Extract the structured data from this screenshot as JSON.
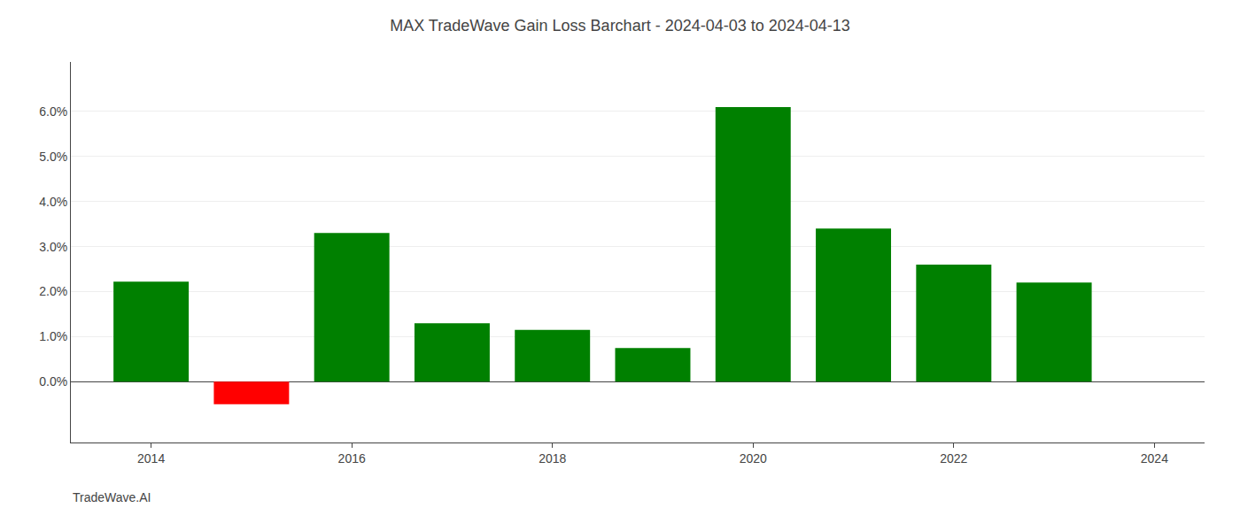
{
  "chart_data": {
    "type": "bar",
    "title": "MAX TradeWave Gain Loss Barchart - 2024-04-03 to 2024-04-13",
    "annotations": [
      "TradeWave.AI"
    ],
    "x": [
      2014,
      2015,
      2016,
      2017,
      2018,
      2019,
      2020,
      2021,
      2022,
      2023
    ],
    "values": [
      0.0222,
      -0.005,
      0.033,
      0.013,
      0.0115,
      0.0075,
      0.061,
      0.034,
      0.026,
      0.022
    ],
    "colors": [
      "#008000",
      "#ff0000",
      "#008000",
      "#008000",
      "#008000",
      "#008000",
      "#008000",
      "#008000",
      "#008000",
      "#008000"
    ],
    "xlim": [
      2013.2,
      2024.5
    ],
    "xticks": [
      2014,
      2016,
      2018,
      2020,
      2022,
      2024
    ],
    "ylim": [
      -0.0135,
      0.071
    ],
    "yticks": [
      {
        "value": 0.0,
        "label": "0.0%"
      },
      {
        "value": 0.01,
        "label": "1.0%"
      },
      {
        "value": 0.02,
        "label": "2.0%"
      },
      {
        "value": 0.03,
        "label": "3.0%"
      },
      {
        "value": 0.04,
        "label": "4.0%"
      },
      {
        "value": 0.05,
        "label": "5.0%"
      },
      {
        "value": 0.06,
        "label": "6.0%"
      }
    ],
    "grid": true
  }
}
